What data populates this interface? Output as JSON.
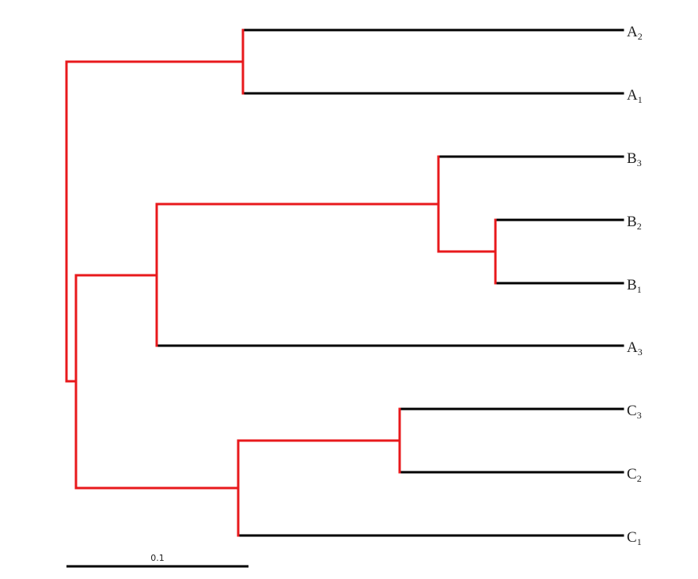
{
  "colors": {
    "internal_branch": "#e8191c",
    "leaf_branch": "#000000",
    "text": "#222222",
    "background": "#ffffff"
  },
  "leaves": [
    {
      "id": "A2",
      "letter": "A",
      "sub": "2"
    },
    {
      "id": "A1",
      "letter": "A",
      "sub": "1"
    },
    {
      "id": "B3",
      "letter": "B",
      "sub": "3"
    },
    {
      "id": "B2",
      "letter": "B",
      "sub": "2"
    },
    {
      "id": "B1",
      "letter": "B",
      "sub": "1"
    },
    {
      "id": "A3",
      "letter": "A",
      "sub": "3"
    },
    {
      "id": "C3",
      "letter": "C",
      "sub": "3"
    },
    {
      "id": "C2",
      "letter": "C",
      "sub": "2"
    },
    {
      "id": "C1",
      "letter": "C",
      "sub": "1"
    }
  ],
  "scale_bar": {
    "label": "0.1",
    "length": 0.1
  }
}
